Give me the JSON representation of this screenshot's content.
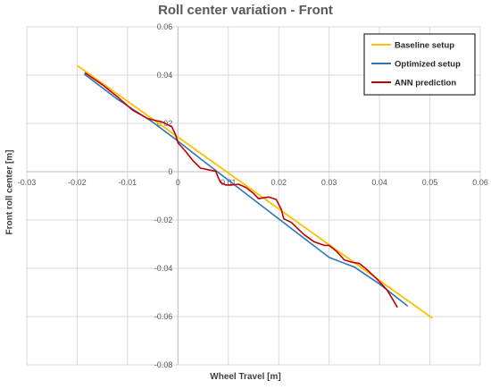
{
  "chart_data": {
    "type": "line",
    "title": "Roll center variation - Front",
    "xlabel": "Wheel Travel [m]",
    "ylabel": "Front roll center [m]",
    "xlim": [
      -0.03,
      0.06
    ],
    "ylim": [
      -0.08,
      0.06
    ],
    "xticks": [
      "-0.03",
      "-0.02",
      "-0.01",
      "0",
      "0.01",
      "0.02",
      "0.03",
      "0.04",
      "0.05",
      "0.06"
    ],
    "yticks": [
      "0.06",
      "0.04",
      "0.02",
      "0",
      "-0.02",
      "-0.04",
      "-0.06",
      "-0.08"
    ],
    "grid": true,
    "legend_position": "top-right",
    "series": [
      {
        "name": "Baseline setup",
        "color": "#FFC000",
        "points": [
          [
            -0.0198,
            0.0437
          ],
          [
            0.0504,
            -0.0605
          ]
        ]
      },
      {
        "name": "Optimized setup",
        "color": "#2E75B6",
        "points": [
          [
            -0.0185,
            0.0403
          ],
          [
            -0.012,
            0.03
          ],
          [
            -0.005,
            0.0205
          ],
          [
            0.0,
            0.0127
          ],
          [
            0.005,
            0.0045
          ],
          [
            0.01,
            -0.0035
          ],
          [
            0.015,
            -0.0115
          ],
          [
            0.02,
            -0.0195
          ],
          [
            0.025,
            -0.0275
          ],
          [
            0.03,
            -0.0355
          ],
          [
            0.035,
            -0.0395
          ],
          [
            0.04,
            -0.0465
          ],
          [
            0.0455,
            -0.0555
          ]
        ]
      },
      {
        "name": "ANN prediction",
        "color": "#C00000",
        "points": [
          [
            -0.0184,
            0.0409
          ],
          [
            -0.015,
            0.036
          ],
          [
            -0.012,
            0.031
          ],
          [
            -0.009,
            0.0255
          ],
          [
            -0.006,
            0.022
          ],
          [
            -0.003,
            0.0205
          ],
          [
            -0.0012,
            0.0185
          ],
          [
            -0.0005,
            0.0155
          ],
          [
            0.0,
            0.012
          ],
          [
            0.0015,
            0.0085
          ],
          [
            0.003,
            0.0045
          ],
          [
            0.0045,
            0.0015
          ],
          [
            0.006,
            0.0008
          ],
          [
            0.0075,
            0.0002
          ],
          [
            0.008,
            -0.0025
          ],
          [
            0.0085,
            -0.0045
          ],
          [
            0.0095,
            -0.0055
          ],
          [
            0.0105,
            -0.0055
          ],
          [
            0.012,
            -0.0052
          ],
          [
            0.0135,
            -0.0065
          ],
          [
            0.015,
            -0.009
          ],
          [
            0.016,
            -0.0112
          ],
          [
            0.017,
            -0.0108
          ],
          [
            0.018,
            -0.0105
          ],
          [
            0.0195,
            -0.0115
          ],
          [
            0.0205,
            -0.0155
          ],
          [
            0.021,
            -0.0195
          ],
          [
            0.0225,
            -0.021
          ],
          [
            0.025,
            -0.026
          ],
          [
            0.027,
            -0.029
          ],
          [
            0.029,
            -0.0305
          ],
          [
            0.03,
            -0.0305
          ],
          [
            0.0315,
            -0.033
          ],
          [
            0.033,
            -0.0365
          ],
          [
            0.0345,
            -0.0375
          ],
          [
            0.036,
            -0.038
          ],
          [
            0.0375,
            -0.0405
          ],
          [
            0.0395,
            -0.0445
          ],
          [
            0.0415,
            -0.049
          ],
          [
            0.0435,
            -0.056
          ]
        ]
      }
    ]
  }
}
